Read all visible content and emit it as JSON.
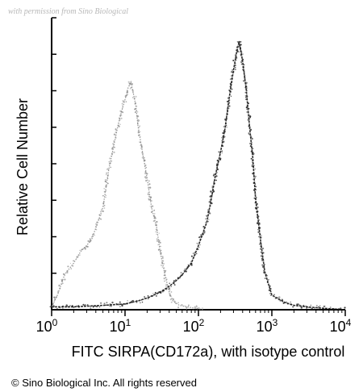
{
  "watermark": "with permission from Sino Biological",
  "copyright": "© Sino Biological Inc. All rights reserved",
  "chart_data": {
    "type": "line",
    "title": "",
    "xlabel": "FITC SIRPA(CD172a), with isotype control",
    "ylabel": "Relative Cell Number",
    "x_scale": "log",
    "xlim": [
      1,
      10000
    ],
    "x_ticks": [
      {
        "value": 1,
        "base": "10",
        "exp": "0"
      },
      {
        "value": 10,
        "base": "10",
        "exp": "1"
      },
      {
        "value": 100,
        "base": "10",
        "exp": "2"
      },
      {
        "value": 1000,
        "base": "10",
        "exp": "3"
      },
      {
        "value": 10000,
        "base": "10",
        "exp": "4"
      }
    ],
    "ylim": [
      0,
      100
    ],
    "grid": false,
    "series": [
      {
        "color": "#8a8a8a",
        "x": [
          1.0,
          1.2,
          1.5,
          2.0,
          2.5,
          3.0,
          3.5,
          4.0,
          5.0,
          6.0,
          7.0,
          8.0,
          9.0,
          10.0,
          11.0,
          12.0,
          13.0,
          14.0,
          15.0,
          17.0,
          20.0,
          23.0,
          27.0,
          30.0,
          35.0,
          40.0,
          45.0,
          55.0,
          70.0,
          90.0,
          120.0
        ],
        "y": [
          1,
          5,
          12,
          16,
          20,
          22,
          24,
          28,
          35,
          48,
          56,
          63,
          68,
          72,
          76,
          78,
          74,
          70,
          63,
          55,
          45,
          35,
          28,
          20,
          12,
          6,
          3,
          1.5,
          1,
          0.5,
          0
        ]
      },
      {
        "color": "#1a1a1a",
        "x": [
          1.0,
          2.0,
          5.0,
          10.0,
          15.0,
          20.0,
          30.0,
          40.0,
          50.0,
          60.0,
          80.0,
          100.0,
          130.0,
          150.0,
          170.0,
          200.0,
          230.0,
          260.0,
          300.0,
          330.0,
          360.0,
          400.0,
          450.0,
          500.0,
          550.0,
          600.0,
          700.0,
          800.0,
          1000.0,
          1500.0,
          2000.0,
          3000.0,
          5000.0,
          10000.0
        ],
        "y": [
          1,
          1,
          1.5,
          2,
          3,
          4,
          6,
          8,
          10,
          12,
          16,
          22,
          30,
          38,
          46,
          54,
          62,
          72,
          82,
          88,
          92,
          85,
          75,
          62,
          52,
          38,
          24,
          13,
          5,
          2.5,
          1.5,
          1,
          0.5,
          0
        ]
      }
    ]
  }
}
